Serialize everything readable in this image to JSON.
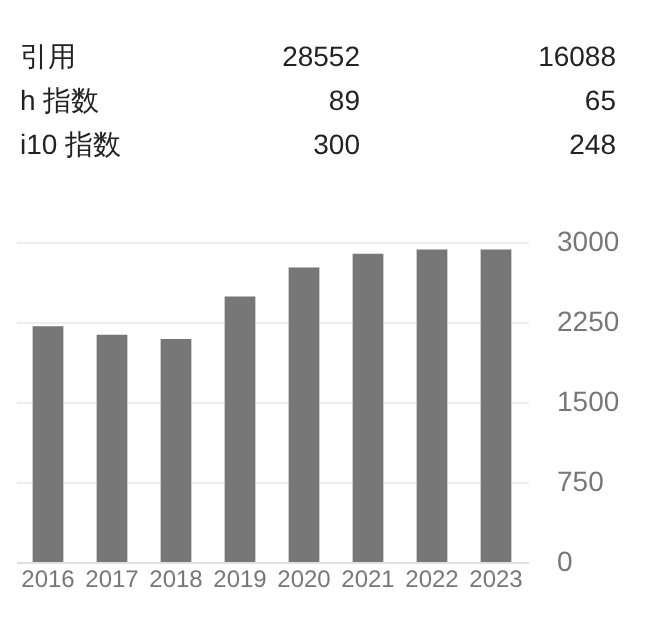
{
  "chart_data": [
    {
      "type": "other",
      "categories": [
        "引用",
        "h 指数",
        "i10 指数"
      ],
      "data_labels": true,
      "series": [
        {
          "color": "#222222",
          "values": [
            28552,
            89,
            300
          ]
        },
        {
          "color": "#222222",
          "values": [
            16088,
            65,
            248
          ]
        }
      ]
    },
    {
      "type": "bar",
      "categories": [
        "2016",
        "2017",
        "2018",
        "2019",
        "2020",
        "2021",
        "2022",
        "2023"
      ],
      "values": [
        2210,
        2130,
        2090,
        2490,
        2760,
        2890,
        2930,
        2930
      ],
      "color": "#777777",
      "ylim": [
        0,
        3000
      ],
      "yticks": [
        0,
        750,
        1500,
        2250,
        3000
      ],
      "grid": "y"
    }
  ]
}
